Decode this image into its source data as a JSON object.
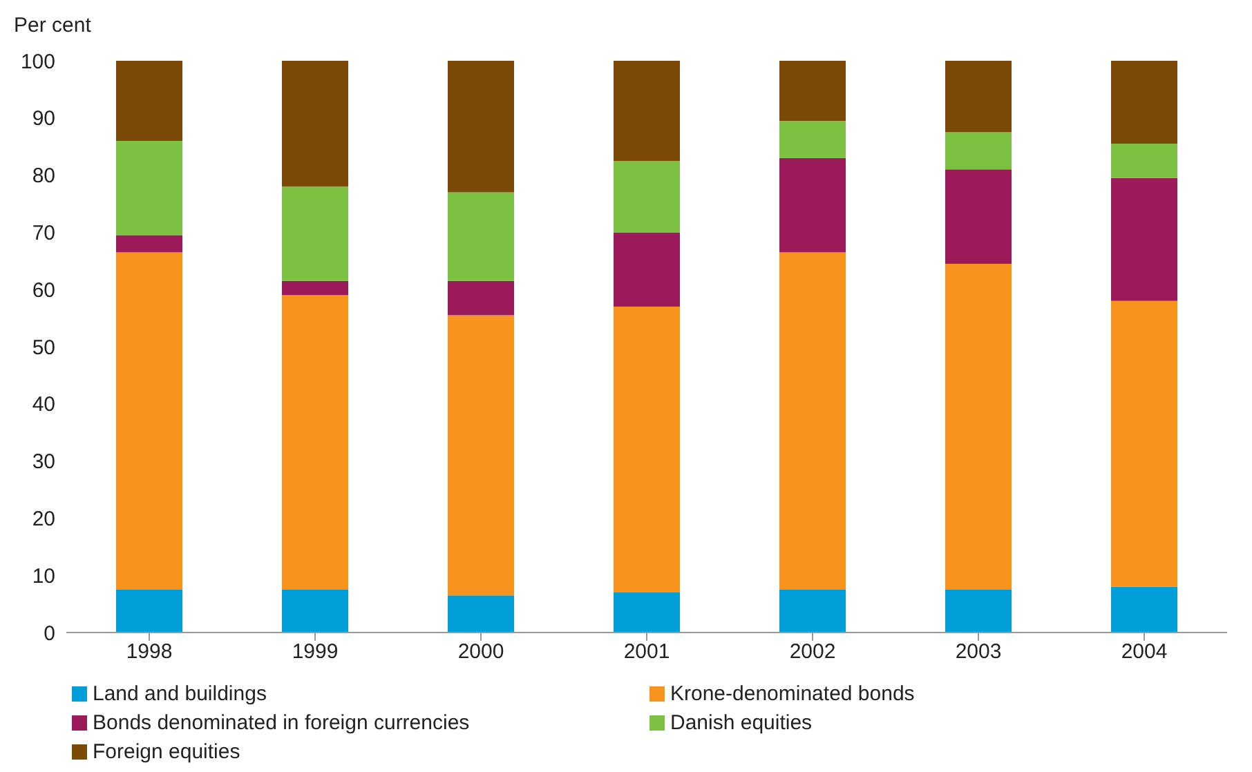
{
  "chart_data": {
    "type": "bar",
    "stacked": true,
    "ylabel": "Per cent",
    "categories": [
      "1998",
      "1999",
      "2000",
      "2001",
      "2002",
      "2003",
      "2004"
    ],
    "series": [
      {
        "name": "Land and buildings",
        "color": "#009fda",
        "values": [
          7.5,
          7.5,
          6.5,
          7,
          7.5,
          7.5,
          8
        ]
      },
      {
        "name": "Krone-denominated bonds",
        "color": "#f7941d",
        "values": [
          59,
          51.5,
          49,
          50,
          59,
          57,
          50
        ]
      },
      {
        "name": "Bonds denominated in foreign currencies",
        "color": "#9b1b5a",
        "values": [
          3,
          2.5,
          6,
          13,
          16.5,
          16.5,
          21.5
        ]
      },
      {
        "name": "Danish equities",
        "color": "#7dc142",
        "values": [
          16.5,
          16.5,
          15.5,
          12.5,
          6.5,
          6.5,
          6
        ]
      },
      {
        "name": "Foreign equities",
        "color": "#7b4a06",
        "values": [
          14,
          22,
          23,
          17.5,
          10.5,
          12.5,
          14.5
        ]
      }
    ],
    "ylim": [
      0,
      100
    ],
    "yticks": [
      0,
      10,
      20,
      30,
      40,
      50,
      60,
      70,
      80,
      90,
      100
    ],
    "legend": "bottom"
  }
}
